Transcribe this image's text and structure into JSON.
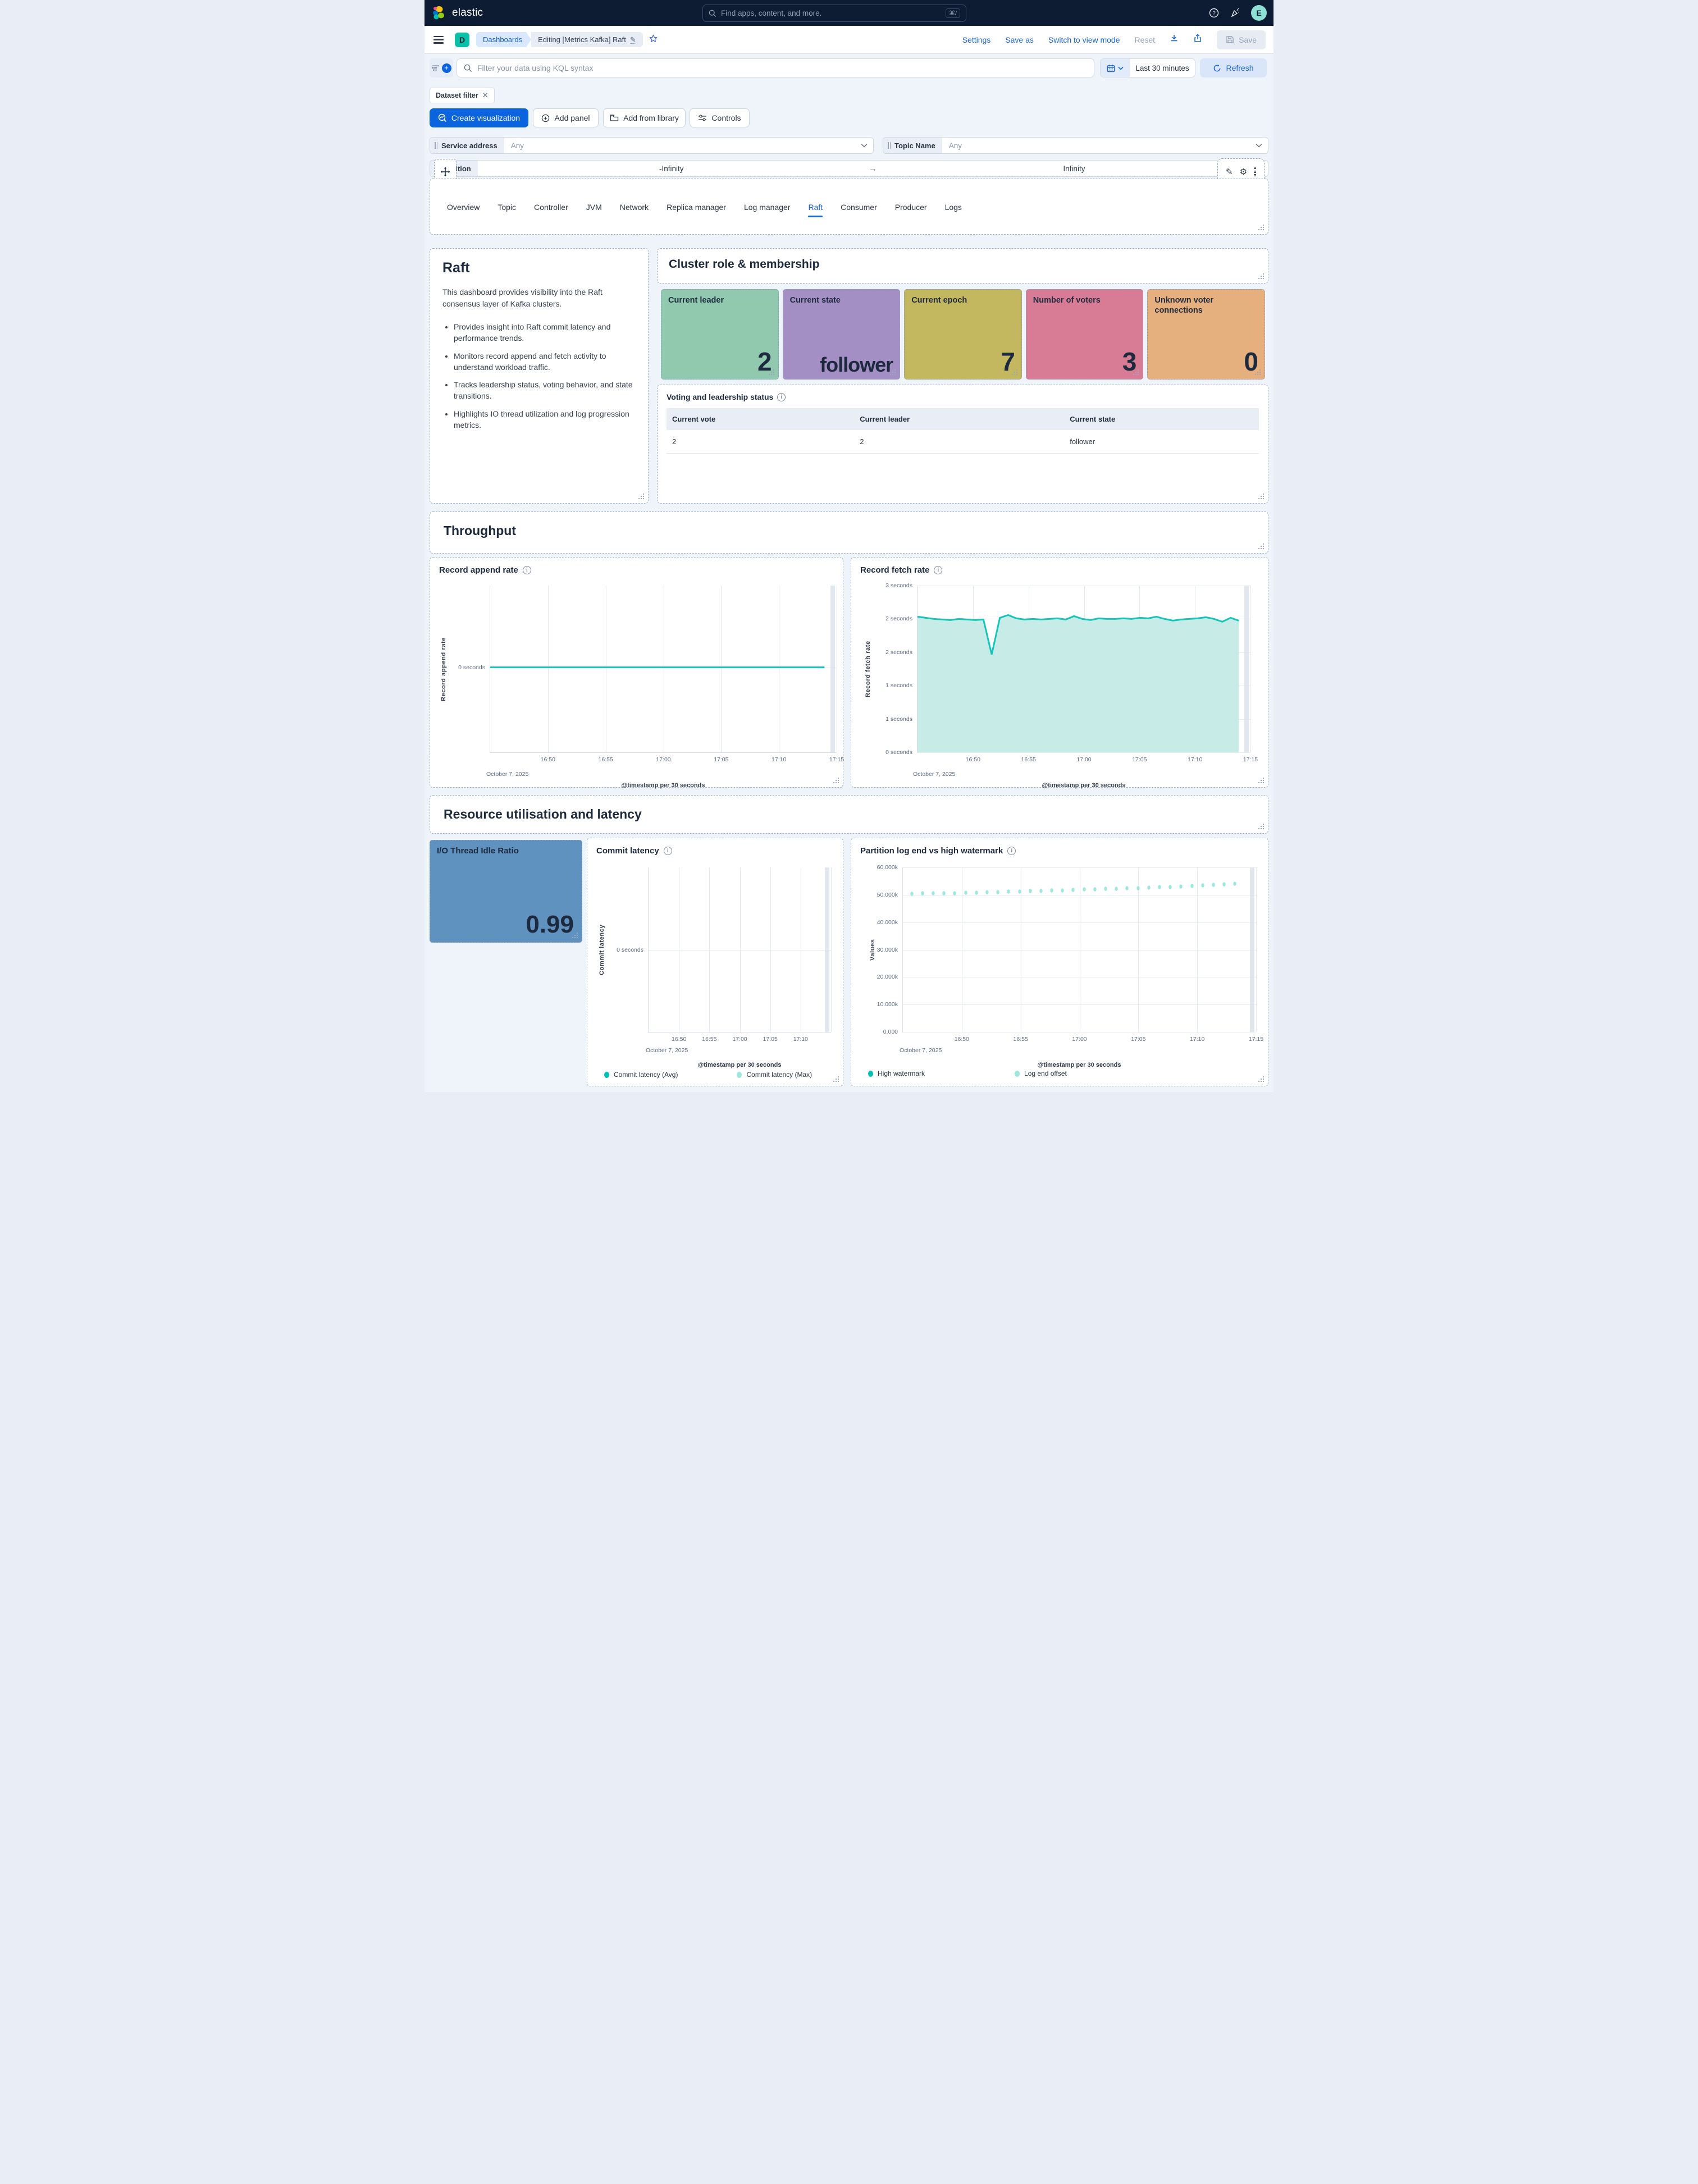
{
  "header": {
    "logo": "elastic",
    "search_placeholder": "Find apps, content, and more.",
    "search_shortcut": "⌘/",
    "avatar_initial": "E"
  },
  "toolbar": {
    "dashboard_badge": "D",
    "breadcrumb_root": "Dashboards",
    "breadcrumb_current": "Editing [Metrics Kafka] Raft",
    "settings_label": "Settings",
    "save_as_label": "Save as",
    "switch_label": "Switch to view mode",
    "reset_label": "Reset",
    "save_label": "Save"
  },
  "filter_bar": {
    "kql_placeholder": "Filter your data using KQL syntax",
    "time_range": "Last 30 minutes",
    "refresh_label": "Refresh",
    "filter_chip": "Dataset filter"
  },
  "actions": {
    "create_visualization": "Create visualization",
    "add_panel": "Add panel",
    "add_from_library": "Add from library",
    "controls": "Controls"
  },
  "controls": {
    "service": {
      "label": "Service address",
      "value": "Any"
    },
    "topic": {
      "label": "Topic Name",
      "value": "Any"
    },
    "partition": {
      "label": "Partition",
      "min": "-Infinity",
      "max": "Infinity"
    }
  },
  "tabs": {
    "items": [
      "Overview",
      "Topic",
      "Controller",
      "JVM",
      "Network",
      "Replica manager",
      "Log manager",
      "Raft",
      "Consumer",
      "Producer",
      "Logs"
    ],
    "active_index": 7
  },
  "raft_panel": {
    "title": "Raft",
    "intro": "This dashboard provides visibility into the Raft consensus layer of Kafka clusters.",
    "bullets": [
      "Provides insight into Raft commit latency and performance trends.",
      "Monitors record append and fetch activity to understand workload traffic.",
      "Tracks leadership status, voting behavior, and state transitions.",
      "Highlights IO thread utilization and log progression metrics."
    ]
  },
  "cluster": {
    "title": "Cluster role & membership",
    "tiles": [
      {
        "label": "Current leader",
        "value": "2",
        "color": "#90c9ae"
      },
      {
        "label": "Current state",
        "value": "follower",
        "color": "#a48fc4"
      },
      {
        "label": "Current epoch",
        "value": "7",
        "color": "#c3b75f"
      },
      {
        "label": "Number of voters",
        "value": "3",
        "color": "#d87c95"
      },
      {
        "label": "Unknown voter connections",
        "value": "0",
        "color": "#e6b07e"
      }
    ]
  },
  "voting_table": {
    "title": "Voting and leadership status",
    "columns": [
      "Current vote",
      "Current leader",
      "Current state"
    ],
    "rows": [
      [
        "2",
        "2",
        "follower"
      ]
    ]
  },
  "sections": {
    "throughput": "Throughput",
    "resource": "Resource utilisation and latency"
  },
  "io_tile": {
    "label": "I/O Thread Idle Ratio",
    "value": "0.99",
    "color": "#6092c0"
  },
  "chart_data": [
    {
      "id": "append",
      "type": "line",
      "title": "Record append rate",
      "ylabel": "Record append rate",
      "xlabel": "@timestamp per 30 seconds",
      "date_label": "October 7, 2025",
      "x": [
        "16:50",
        "16:55",
        "17:00",
        "17:05",
        "17:10",
        "17:15"
      ],
      "x_grid": 6,
      "ylim": [
        -1.04,
        1
      ],
      "yticks": [
        {
          "value": 0,
          "label": "0 seconds"
        }
      ],
      "grid": true,
      "series": [
        {
          "name": "Record append rate",
          "color": "#16c5b8",
          "values": [
            0,
            0,
            0,
            0,
            0,
            0,
            0,
            0,
            0,
            0,
            0,
            0,
            0,
            0,
            0,
            0,
            0,
            0,
            0,
            0,
            0,
            0,
            0,
            0,
            0,
            0,
            0,
            0,
            0,
            0,
            0,
            0,
            0,
            0,
            0,
            0,
            0,
            0,
            0,
            0
          ]
        }
      ]
    },
    {
      "id": "fetch",
      "type": "area",
      "title": "Record fetch rate",
      "ylabel": "Record fetch rate",
      "xlabel": "@timestamp per 30 seconds",
      "date_label": "October 7, 2025",
      "x": [
        "16:50",
        "16:55",
        "17:00",
        "17:05",
        "17:10",
        "17:15"
      ],
      "x_grid": 6,
      "ylim": [
        0,
        3
      ],
      "yticks": [
        {
          "value": 3.0,
          "label": "3 seconds"
        },
        {
          "value": 2.4,
          "label": "2 seconds"
        },
        {
          "value": 1.8,
          "label": "2 seconds"
        },
        {
          "value": 1.2,
          "label": "1 seconds"
        },
        {
          "value": 0.6,
          "label": "1 seconds"
        },
        {
          "value": 0,
          "label": "0 seconds"
        }
      ],
      "grid": true,
      "series": [
        {
          "name": "Record fetch rate",
          "color": "#16c5b8",
          "fill": "#c7ebe7",
          "values": [
            2.44,
            2.42,
            2.4,
            2.39,
            2.38,
            2.4,
            2.39,
            2.38,
            2.39,
            1.76,
            2.42,
            2.47,
            2.41,
            2.39,
            2.4,
            2.39,
            2.4,
            2.41,
            2.39,
            2.45,
            2.4,
            2.38,
            2.41,
            2.4,
            2.4,
            2.41,
            2.4,
            2.42,
            2.41,
            2.44,
            2.4,
            2.37,
            2.39,
            2.4,
            2.41,
            2.43,
            2.4,
            2.35,
            2.42,
            2.37
          ]
        }
      ]
    },
    {
      "id": "commit",
      "type": "line",
      "title": "Commit latency",
      "ylabel": "Commit latency",
      "xlabel": "@timestamp per 30 seconds",
      "date_label": "October 7, 2025",
      "x": [
        "16:50",
        "16:55",
        "17:00",
        "17:05",
        "17:10"
      ],
      "x_grid": 6,
      "ylim": [
        -1,
        1
      ],
      "yticks": [
        {
          "value": 0,
          "label": "0 seconds"
        }
      ],
      "grid": true,
      "legend": [
        {
          "label": "Commit latency (Avg)",
          "color": "#00bfb3"
        },
        {
          "label": "Commit latency (Max)",
          "color": "#9de8dd"
        }
      ],
      "series": []
    },
    {
      "id": "watermark",
      "type": "scatter",
      "title": "Partition log end vs high watermark",
      "ylabel": "Values",
      "xlabel": "@timestamp per 30 seconds",
      "date_label": "October 7, 2025",
      "x": [
        "16:50",
        "16:55",
        "17:00",
        "17:05",
        "17:10",
        "17:15"
      ],
      "x_grid": 6,
      "ylim": [
        0,
        60000
      ],
      "yticks": [
        {
          "value": 60000,
          "label": "60.000k"
        },
        {
          "value": 50000,
          "label": "50.000k"
        },
        {
          "value": 40000,
          "label": "40.000k"
        },
        {
          "value": 30000,
          "label": "30.000k"
        },
        {
          "value": 20000,
          "label": "20.000k"
        },
        {
          "value": 10000,
          "label": "10.000k"
        },
        {
          "value": 0,
          "label": "0.000"
        }
      ],
      "grid": true,
      "legend": [
        {
          "label": "High watermark",
          "color": "#00bfb3"
        },
        {
          "label": "Log end offset",
          "color": "#9de8dd"
        }
      ],
      "series": [
        {
          "name": "High watermark",
          "color": "#00bfb3",
          "values": [
            50400,
            50500,
            50550,
            50600,
            50650,
            50750,
            50850,
            50950,
            51050,
            51150,
            51250,
            51350,
            51500,
            51600,
            51700,
            51800,
            51950,
            52050,
            52150,
            52300,
            52400,
            52500,
            52650,
            52800,
            52900,
            53050,
            53200,
            53400,
            53550,
            53800,
            54000
          ]
        },
        {
          "name": "Log end offset",
          "color": "#9de8dd",
          "values": [
            50400,
            50500,
            50550,
            50600,
            50650,
            50750,
            50850,
            50950,
            51050,
            51150,
            51250,
            51350,
            51500,
            51600,
            51700,
            51800,
            51950,
            52050,
            52150,
            52300,
            52400,
            52500,
            52650,
            52800,
            52900,
            53050,
            53200,
            53400,
            53550,
            53800,
            54000
          ]
        }
      ]
    }
  ]
}
